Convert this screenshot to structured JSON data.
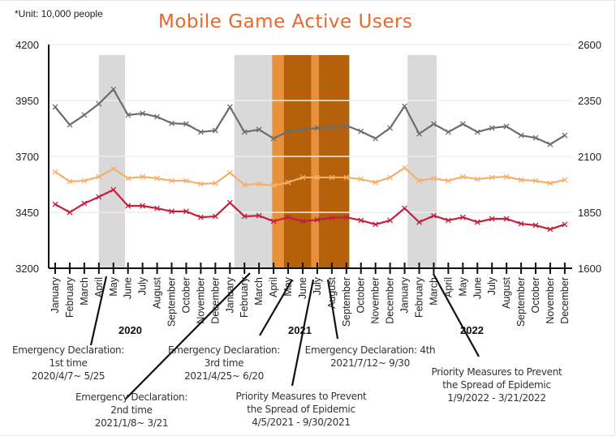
{
  "unit_note": "*Unit: 10,000 people",
  "chart_data": {
    "type": "line",
    "title": "Mobile Game Active Users",
    "xlabel": "",
    "ylabel": "",
    "left_axis": {
      "ylim": [
        3200,
        4200
      ],
      "ticks": [
        "4200",
        "3950",
        "3700",
        "3450",
        "3200"
      ]
    },
    "right_axis": {
      "ylim": [
        1600,
        2600
      ],
      "ticks": [
        "2600",
        "2350",
        "2100",
        "1850",
        "1600"
      ]
    },
    "grid": true,
    "categories": [
      "January",
      "February",
      "March",
      "April",
      "May",
      "June",
      "July",
      "August",
      "September",
      "October",
      "November",
      "December",
      "January",
      "February",
      "March",
      "April",
      "May",
      "June",
      "July",
      "August",
      "September",
      "October",
      "November",
      "December",
      "January",
      "February",
      "March",
      "April",
      "May",
      "June",
      "July",
      "August",
      "September",
      "October",
      "November",
      "December"
    ],
    "years": [
      {
        "label": "2020",
        "start_index": 0
      },
      {
        "label": "2021",
        "start_index": 12
      },
      {
        "label": "2022",
        "start_index": 24
      }
    ],
    "series": [
      {
        "name": "gray-series",
        "color": "#6d6d6d",
        "axis": "left",
        "values": [
          3921,
          3841,
          3885,
          3935,
          4000,
          3885,
          3892,
          3877,
          3848,
          3845,
          3809,
          3816,
          3921,
          3809,
          3820,
          3780,
          3812,
          3820,
          3827,
          3830,
          3838,
          3812,
          3780,
          3827,
          3925,
          3801,
          3845,
          3809,
          3845,
          3809,
          3827,
          3834,
          3794,
          3783,
          3754,
          3794
        ]
      },
      {
        "name": "orange-series",
        "color": "#f4b06a",
        "axis": "left",
        "values": [
          3631,
          3588,
          3591,
          3609,
          3645,
          3602,
          3609,
          3602,
          3591,
          3591,
          3577,
          3580,
          3627,
          3573,
          3577,
          3569,
          3584,
          3606,
          3606,
          3606,
          3606,
          3598,
          3584,
          3606,
          3649,
          3591,
          3602,
          3591,
          3609,
          3598,
          3606,
          3609,
          3595,
          3591,
          3580,
          3595
        ]
      },
      {
        "name": "red-series",
        "color": "#c4203c",
        "axis": "left",
        "values": [
          3486,
          3450,
          3490,
          3519,
          3551,
          3479,
          3479,
          3468,
          3454,
          3454,
          3428,
          3432,
          3493,
          3432,
          3435,
          3410,
          3428,
          3410,
          3417,
          3425,
          3428,
          3414,
          3396,
          3414,
          3468,
          3406,
          3435,
          3414,
          3428,
          3406,
          3421,
          3421,
          3399,
          3392,
          3374,
          3396
        ]
      }
    ],
    "shaded_periods": [
      {
        "name": "emergency-1",
        "color": "#d9d9d9",
        "from": 3.0,
        "to": 4.8
      },
      {
        "name": "emergency-2",
        "color": "#d9d9d9",
        "from": 12.3,
        "to": 14.9
      },
      {
        "name": "priority-measures-2021-a",
        "color": "#e8903a",
        "from": 14.9,
        "to": 15.7
      },
      {
        "name": "emergency-3",
        "color": "#b5600a",
        "from": 15.7,
        "to": 17.6
      },
      {
        "name": "priority-measures-2021-b",
        "color": "#e8903a",
        "from": 17.6,
        "to": 18.1
      },
      {
        "name": "emergency-4",
        "color": "#b5600a",
        "from": 18.1,
        "to": 20.2
      },
      {
        "name": "priority-measures-2022",
        "color": "#d9d9d9",
        "from": 24.2,
        "to": 26.2
      }
    ],
    "annotations": [
      {
        "lines": [
          "Emergency Declaration:",
          "1st time",
          "2020/4/7~ 5/25"
        ]
      },
      {
        "lines": [
          "Emergency Declaration:",
          "2nd time",
          "2021/1/8~ 3/21"
        ]
      },
      {
        "lines": [
          "Emergency Declaration:",
          "3rd time",
          "2021/4/25~ 6/20"
        ]
      },
      {
        "lines": [
          "Priority Measures to Prevent",
          "the Spread of Epidemic",
          "4/5/2021 - 9/30/2021"
        ]
      },
      {
        "lines": [
          "Emergency Declaration: 4th",
          "2021/7/12~ 9/30"
        ]
      },
      {
        "lines": [
          "Priority Measures to Prevent",
          "the Spread of Epidemic",
          "1/9/2022 - 3/21/2022"
        ]
      }
    ]
  }
}
